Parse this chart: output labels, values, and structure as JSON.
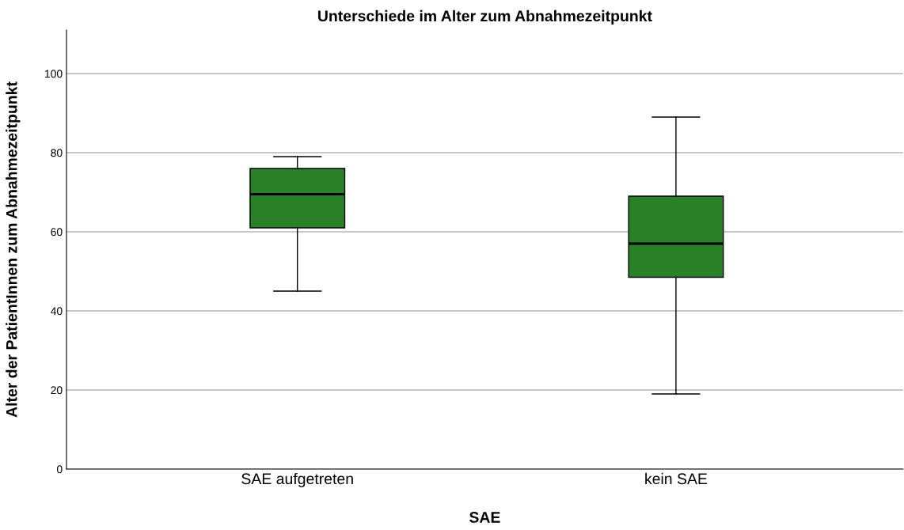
{
  "chart_data": {
    "type": "box",
    "title": "Unterschiede im Alter zum Abnahmezeitpunkt",
    "xlabel": "SAE",
    "ylabel": "Alter der PatientInnen zum Abnahmezeitpunkt",
    "categories": [
      "SAE aufgetreten",
      "kein SAE"
    ],
    "boxes": [
      {
        "low": 45,
        "q1": 61,
        "median": 69.5,
        "q3": 76,
        "high": 79
      },
      {
        "low": 19,
        "q1": 48.5,
        "median": 57,
        "q3": 69,
        "high": 89
      }
    ],
    "color": "#2a8228",
    "ylim": [
      0,
      111
    ],
    "yticks": [
      0,
      20,
      40,
      60,
      80,
      100
    ],
    "grid": "y"
  }
}
